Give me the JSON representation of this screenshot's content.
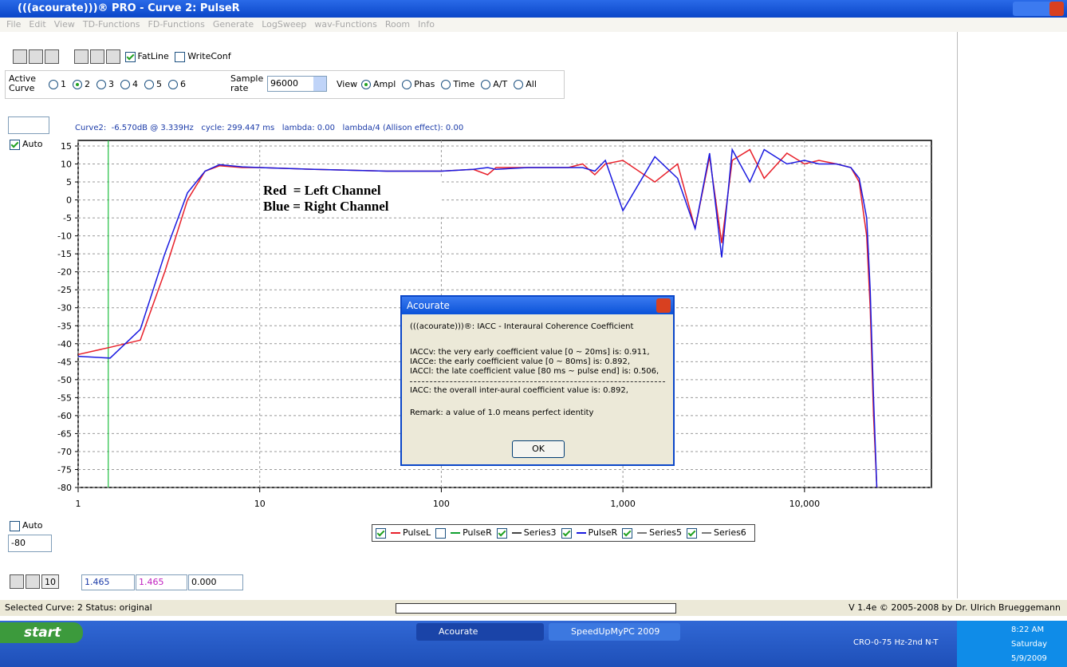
{
  "window": {
    "title": "(((acourate)))® PRO - Curve 2: PulseR"
  },
  "menu": [
    "File",
    "Edit",
    "View",
    "TD-Functions",
    "FD-Functions",
    "Generate",
    "LogSweep",
    "wav-Functions",
    "Room",
    "Info"
  ],
  "toolbar": {
    "fatline": "FatLine",
    "writeconf": "WriteConf"
  },
  "controls": {
    "active_curve_label": "Active Curve",
    "curves": [
      "1",
      "2",
      "3",
      "4",
      "5",
      "6"
    ],
    "selected_curve": 1,
    "sample_rate_label": "Sample rate",
    "sample_rate": "96000",
    "view_label": "View",
    "views": [
      "Ampl",
      "Phas",
      "Time",
      "A/T",
      "All"
    ],
    "selected_view": 0
  },
  "left_panel": {
    "auto_top": "Auto",
    "auto_bottom": "Auto",
    "min_value": "-80"
  },
  "info_line": "Curve2:  -6.570dB @ 3.339Hz   cycle: 299.447 ms   lambda: 0.00   lambda/4 (Allison effect): 0.00",
  "chart_data": {
    "type": "line",
    "annotations": [
      "Red  = Left Channel",
      "Blue = Right Channel"
    ],
    "x": [
      1,
      1.5,
      2.2,
      3,
      4,
      5,
      6,
      8,
      10,
      20,
      50,
      100,
      150,
      180,
      200,
      300,
      500,
      600,
      700,
      800,
      1000,
      1500,
      2000,
      2500,
      3000,
      3500,
      4000,
      5000,
      6000,
      8000,
      10000,
      12000,
      15000,
      18000,
      20000,
      22000,
      23000,
      24000,
      25000
    ],
    "series": [
      {
        "name": "PulseL",
        "color": "#e8202a",
        "values": [
          -43,
          -41,
          -39,
          -20,
          0,
          8,
          9.5,
          9,
          9,
          8.5,
          8,
          8,
          8.5,
          7,
          9,
          9,
          9,
          10,
          7,
          10,
          11,
          5,
          10,
          -8,
          12,
          -12,
          11,
          14,
          6,
          13,
          10,
          11,
          10,
          9,
          5,
          -10,
          -30,
          -60,
          -80
        ]
      },
      {
        "name": "PulseR",
        "color": "#1a1ae0",
        "values": [
          -43.5,
          -44,
          -36,
          -15,
          2,
          8,
          9.8,
          9.2,
          9,
          8.5,
          8,
          8,
          8.5,
          9,
          8.5,
          9,
          9,
          9,
          8,
          11,
          -3,
          12,
          6,
          -8,
          13,
          -16,
          14,
          5,
          14,
          10,
          11,
          10,
          10,
          9,
          6,
          -5,
          -25,
          -55,
          -80
        ]
      }
    ],
    "other_legend": [
      {
        "name": "PulseR",
        "color": "#10a030"
      },
      {
        "name": "Series3",
        "color": "#444444"
      },
      {
        "name": "Series5",
        "color": "#777777"
      },
      {
        "name": "Series6",
        "color": "#777777"
      }
    ],
    "cursor": 1.465,
    "log_x": true,
    "xlim": [
      1,
      50000
    ],
    "xticks": [
      1,
      10,
      100,
      {
        "value": 1000,
        "label": "1,000"
      },
      {
        "value": 10000,
        "label": "10,000"
      }
    ],
    "ylim": [
      -80,
      15
    ],
    "yticks": [
      15,
      10,
      5,
      0,
      -5,
      -10,
      -15,
      -20,
      -25,
      -30,
      -35,
      -40,
      -45,
      -50,
      -55,
      -60,
      -65,
      -70,
      -75,
      -80
    ],
    "grid": true
  },
  "bottom_controls": {
    "zoom_value": "10",
    "field1": "1.465",
    "field2": "1.465",
    "field3": "0.000"
  },
  "dialog": {
    "title": "Acourate",
    "heading": "(((acourate)))®: IACC - Interaural Coherence Coefficient",
    "lines": [
      "IACCv: the very early coefficient value [0 ~ 20ms] is: 0.911,",
      "IACCe: the early coefficient value [0 ~ 80ms] is: 0.892,",
      "IACCl: the late coefficient value [80 ms ~ pulse end] is: 0.506,"
    ],
    "overall": "IACC: the overall inter-aural coefficient value is: 0.892,",
    "remark": "Remark: a value of 1.0 means perfect identity",
    "ok": "OK"
  },
  "status": {
    "left": "Selected Curve: 2  Status: original",
    "right": "V 1.4e © 2005-2008 by Dr. Ulrich Brueggemann"
  },
  "taskbar": {
    "start": "start",
    "tasks": [
      "Acourate",
      "SpeedUpMyPC 2009"
    ],
    "tray_text": "CRO-0-75 Hz-2nd N-T",
    "time": "8:22 AM",
    "day": "Saturday",
    "date": "5/9/2009"
  }
}
